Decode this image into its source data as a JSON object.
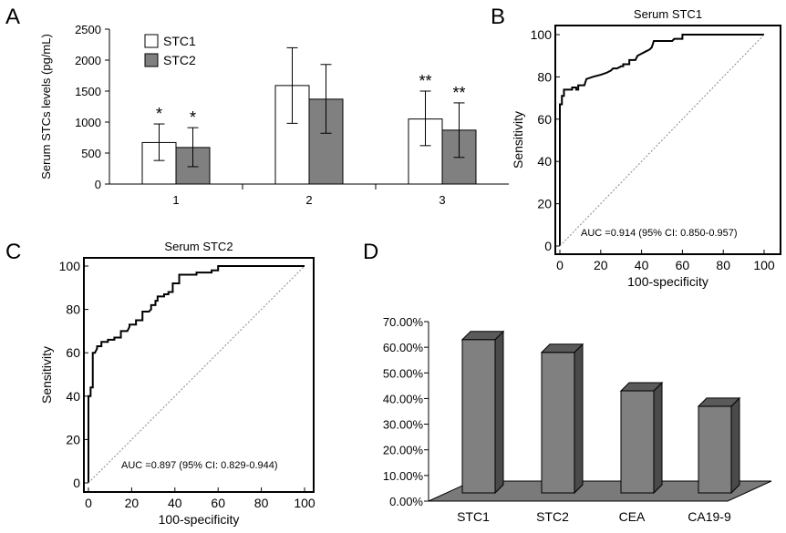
{
  "chart_data": [
    {
      "panel": "A",
      "type": "bar",
      "title": "",
      "xlabel": "",
      "ylabel": "Serum STCs levels (pg/mL)",
      "categories": [
        "1",
        "2",
        "3"
      ],
      "ylim": [
        0,
        2500
      ],
      "yticks": [
        "0",
        "500",
        "1000",
        "1500",
        "2000",
        "2500"
      ],
      "legend_position": "top-left",
      "series": [
        {
          "name": "STC1",
          "color": "#ffffff",
          "values": [
            670,
            1590,
            1050
          ],
          "err_low": [
            380,
            980,
            620
          ],
          "err_high": [
            970,
            2200,
            1500
          ],
          "annotations": [
            "*",
            "",
            "**"
          ]
        },
        {
          "name": "STC2",
          "color": "#808080",
          "values": [
            590,
            1370,
            870
          ],
          "err_low": [
            280,
            820,
            430
          ],
          "err_high": [
            910,
            1930,
            1310
          ],
          "annotations": [
            "*",
            "",
            "**"
          ]
        }
      ]
    },
    {
      "panel": "B",
      "type": "line",
      "title": "Serum STC1",
      "xlabel": "100-specificity",
      "ylabel": "Sensitivity",
      "xlim": [
        0,
        100
      ],
      "ylim": [
        0,
        100
      ],
      "xticks": [
        "0",
        "20",
        "40",
        "60",
        "80",
        "100"
      ],
      "yticks": [
        "0",
        "20",
        "40",
        "60",
        "80",
        "100"
      ],
      "annotation": "AUC =0.914 (95% CI: 0.850-0.957)",
      "series": [
        {
          "name": "",
          "style": "solid",
          "x": [
            0,
            0,
            1,
            1,
            2,
            2,
            6,
            6,
            8,
            8,
            9,
            9,
            12,
            13,
            13,
            16,
            16,
            20,
            20,
            23,
            23,
            25,
            26,
            28,
            30,
            31,
            31,
            34,
            34,
            37,
            38,
            38,
            40,
            40,
            42,
            42,
            44,
            45,
            45,
            46,
            50,
            53,
            53,
            55,
            56,
            58,
            59,
            60,
            60,
            100
          ],
          "y": [
            0,
            67,
            67,
            71,
            71,
            74,
            74,
            75,
            75,
            74,
            74,
            76,
            76,
            79,
            79,
            80,
            80,
            81,
            81,
            82,
            82,
            83,
            84,
            84,
            85,
            85,
            86,
            86,
            88,
            88,
            90,
            90,
            91,
            91,
            92,
            92,
            93,
            94,
            94,
            97,
            97,
            97,
            97,
            97,
            98,
            98,
            98,
            98,
            100,
            100
          ]
        },
        {
          "name": "",
          "style": "dotted",
          "x": [
            0,
            100
          ],
          "y": [
            0,
            100
          ]
        }
      ]
    },
    {
      "panel": "C",
      "type": "line",
      "title": "Serum STC2",
      "xlabel": "100-specificity",
      "ylabel": "Sensitivity",
      "xlim": [
        0,
        100
      ],
      "ylim": [
        0,
        100
      ],
      "xticks": [
        "0",
        "20",
        "40",
        "60",
        "80",
        "100"
      ],
      "yticks": [
        "0",
        "20",
        "40",
        "60",
        "80",
        "100"
      ],
      "annotation": "AUC =0.897 (95% CI: 0.829-0.944)",
      "series": [
        {
          "name": "",
          "style": "solid",
          "x": [
            0,
            0,
            1,
            1,
            2,
            2,
            3,
            4,
            4,
            6,
            6,
            9,
            9,
            12,
            12,
            15,
            15,
            18,
            19,
            19,
            22,
            22,
            25,
            25,
            28,
            29,
            29,
            31,
            31,
            32,
            32,
            35,
            35,
            37,
            37,
            39,
            39,
            42,
            42,
            44,
            44,
            50,
            50,
            57,
            57,
            60,
            60,
            100
          ],
          "y": [
            0,
            40,
            40,
            44,
            44,
            60,
            60,
            62,
            63,
            63,
            65,
            65,
            66,
            66,
            67,
            67,
            70,
            70,
            72,
            73,
            73,
            75,
            75,
            79,
            79,
            80,
            82,
            82,
            84,
            84,
            86,
            86,
            87,
            87,
            88,
            88,
            92,
            92,
            96,
            96,
            96,
            96,
            97,
            97,
            98,
            98,
            100,
            100
          ]
        },
        {
          "name": "",
          "style": "dotted",
          "x": [
            0,
            100
          ],
          "y": [
            0,
            100
          ]
        }
      ]
    },
    {
      "panel": "D",
      "type": "bar",
      "title": "",
      "xlabel": "",
      "ylabel": "",
      "categories": [
        "STC1",
        "STC2",
        "CEA",
        "CA19-9"
      ],
      "values": [
        0.63,
        0.58,
        0.43,
        0.37
      ],
      "ylim": [
        0,
        0.7
      ],
      "yticks": [
        "0.00%",
        "10.00%",
        "20.00%",
        "30.00%",
        "40.00%",
        "50.00%",
        "60.00%",
        "70.00%"
      ],
      "style": "3d",
      "color": "#808080"
    }
  ],
  "panel_labels": [
    "A",
    "B",
    "C",
    "D"
  ]
}
